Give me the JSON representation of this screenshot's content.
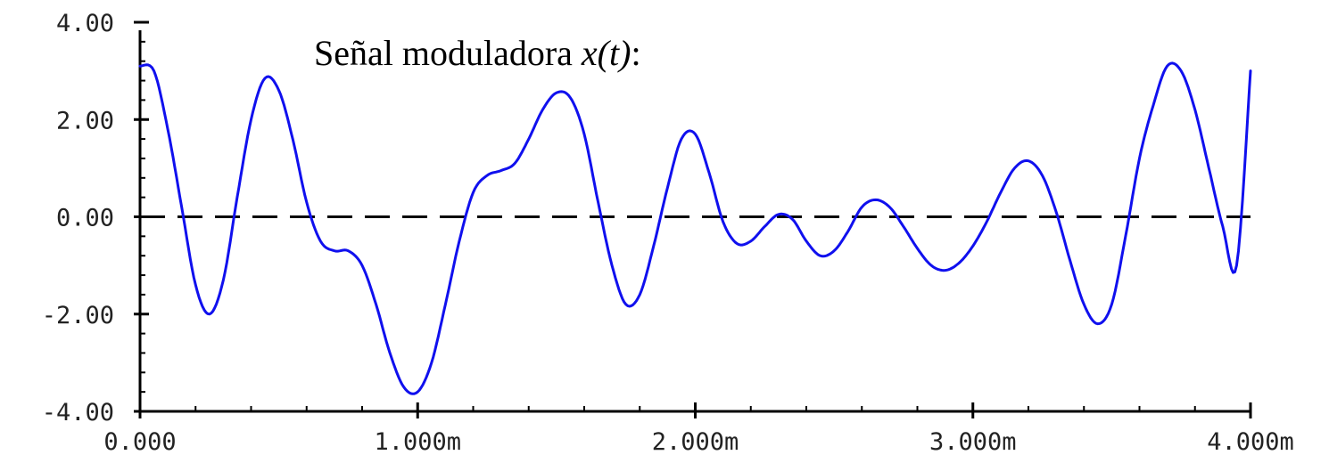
{
  "chart_data": {
    "type": "line",
    "title": "Señal moduladora",
    "title_signal": "x(t)",
    "title_suffix": ":",
    "xlabel": "",
    "ylabel": "",
    "xlim": [
      0,
      4
    ],
    "ylim": [
      -4,
      4
    ],
    "x_tick_labels": [
      "0.000",
      "1.000m",
      "2.000m",
      "3.000m",
      "4.000m"
    ],
    "y_tick_labels": [
      "4.00",
      "2.00",
      "0.00",
      "-2.00",
      "-4.00"
    ],
    "grid": false,
    "legend": "none",
    "zero_reference": {
      "y": 0,
      "style": "dashed",
      "color": "#000000"
    },
    "series": [
      {
        "color": "#1010ee",
        "x": [
          0,
          0.05,
          0.1,
          0.15,
          0.2,
          0.25,
          0.3,
          0.35,
          0.4,
          0.45,
          0.5,
          0.55,
          0.6,
          0.65,
          0.7,
          0.75,
          0.8,
          0.85,
          0.9,
          0.95,
          1.0,
          1.05,
          1.1,
          1.15,
          1.2,
          1.25,
          1.3,
          1.35,
          1.4,
          1.45,
          1.5,
          1.55,
          1.6,
          1.65,
          1.7,
          1.75,
          1.8,
          1.85,
          1.9,
          1.95,
          2.0,
          2.05,
          2.1,
          2.15,
          2.2,
          2.25,
          2.3,
          2.35,
          2.4,
          2.45,
          2.5,
          2.55,
          2.6,
          2.65,
          2.7,
          2.75,
          2.8,
          2.85,
          2.9,
          2.95,
          3.0,
          3.05,
          3.1,
          3.15,
          3.2,
          3.25,
          3.3,
          3.35,
          3.4,
          3.45,
          3.5,
          3.55,
          3.6,
          3.65,
          3.7,
          3.75,
          3.8,
          3.85,
          3.9,
          3.95,
          4.0
        ],
        "values": [
          3.1,
          3.0,
          1.8,
          0.2,
          -1.4,
          -2.0,
          -1.3,
          0.4,
          2.0,
          2.85,
          2.6,
          1.6,
          0.3,
          -0.5,
          -0.7,
          -0.7,
          -1.0,
          -1.8,
          -2.8,
          -3.5,
          -3.6,
          -3.0,
          -1.8,
          -0.5,
          0.5,
          0.85,
          0.95,
          1.1,
          1.6,
          2.2,
          2.55,
          2.45,
          1.7,
          0.3,
          -1.0,
          -1.8,
          -1.6,
          -0.6,
          0.6,
          1.6,
          1.7,
          0.9,
          -0.1,
          -0.55,
          -0.5,
          -0.2,
          0.05,
          -0.05,
          -0.5,
          -0.8,
          -0.7,
          -0.3,
          0.2,
          0.35,
          0.2,
          -0.2,
          -0.65,
          -1.0,
          -1.1,
          -0.95,
          -0.6,
          -0.1,
          0.5,
          1.0,
          1.15,
          0.85,
          0.1,
          -0.9,
          -1.8,
          -2.2,
          -1.8,
          -0.4,
          1.2,
          2.3,
          3.1,
          3.0,
          2.2,
          1.0,
          -0.2,
          -1.0,
          3.0
        ]
      }
    ]
  }
}
